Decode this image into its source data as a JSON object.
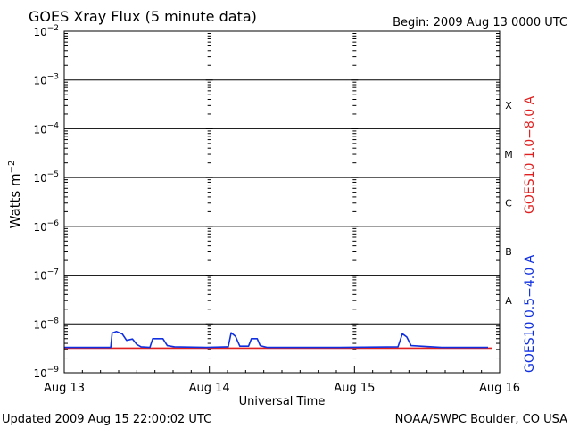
{
  "chart_data": {
    "type": "line",
    "title": "GOES Xray Flux (5 minute data)",
    "begin_label": "Begin:  2009 Aug 13 0000 UTC",
    "xlabel": "Universal Time",
    "ylabel_base": "Watts m",
    "ylabel_exp": "−2",
    "y_scale": "log",
    "ylim": [
      1e-09,
      0.01
    ],
    "y_ticks": [
      {
        "base": "10",
        "exp": "−2",
        "value": 0.01
      },
      {
        "base": "10",
        "exp": "−3",
        "value": 0.001
      },
      {
        "base": "10",
        "exp": "−4",
        "value": 0.0001
      },
      {
        "base": "10",
        "exp": "−5",
        "value": 1e-05
      },
      {
        "base": "10",
        "exp": "−6",
        "value": 1e-06
      },
      {
        "base": "10",
        "exp": "−7",
        "value": 1e-07
      },
      {
        "base": "10",
        "exp": "−8",
        "value": 1e-08
      },
      {
        "base": "10",
        "exp": "−9",
        "value": 1e-09
      }
    ],
    "x_ticks": [
      "Aug 13",
      "Aug 14",
      "Aug 15",
      "Aug 16"
    ],
    "x_range_days": [
      0,
      3
    ],
    "flare_classes": [
      {
        "label": "X",
        "min": 0.0001,
        "max": 0.001
      },
      {
        "label": "M",
        "min": 1e-05,
        "max": 0.0001
      },
      {
        "label": "C",
        "min": 1e-06,
        "max": 1e-05
      },
      {
        "label": "B",
        "min": 1e-07,
        "max": 1e-06
      },
      {
        "label": "A",
        "min": 1e-08,
        "max": 1e-07
      }
    ],
    "grid": true,
    "series": [
      {
        "name": "GOES10 1.0−8.0 A",
        "color": "#e02020",
        "points": [
          [
            0.0,
            3.2e-09
          ],
          [
            1.0,
            3.2e-09
          ],
          [
            2.0,
            3.2e-09
          ],
          [
            2.95,
            3.2e-09
          ]
        ]
      },
      {
        "name": "GOES10 0.5−4.0 A",
        "color": "#1030e0",
        "points": [
          [
            0.0,
            3.3e-09
          ],
          [
            0.32,
            3.3e-09
          ],
          [
            0.33,
            6.5e-09
          ],
          [
            0.36,
            7e-09
          ],
          [
            0.4,
            6.2e-09
          ],
          [
            0.43,
            4.6e-09
          ],
          [
            0.47,
            4.9e-09
          ],
          [
            0.5,
            3.8e-09
          ],
          [
            0.53,
            3.4e-09
          ],
          [
            0.59,
            3.3e-09
          ],
          [
            0.61,
            5e-09
          ],
          [
            0.68,
            5e-09
          ],
          [
            0.71,
            3.6e-09
          ],
          [
            0.76,
            3.4e-09
          ],
          [
            0.98,
            3.3e-09
          ],
          [
            1.13,
            3.4e-09
          ],
          [
            1.15,
            6.6e-09
          ],
          [
            1.18,
            5.6e-09
          ],
          [
            1.21,
            3.5e-09
          ],
          [
            1.27,
            3.5e-09
          ],
          [
            1.29,
            5e-09
          ],
          [
            1.33,
            5e-09
          ],
          [
            1.35,
            3.6e-09
          ],
          [
            1.4,
            3.3e-09
          ],
          [
            1.6,
            3.3e-09
          ],
          [
            1.85,
            3.3e-09
          ],
          [
            2.3,
            3.4e-09
          ],
          [
            2.33,
            6.3e-09
          ],
          [
            2.36,
            5.4e-09
          ],
          [
            2.39,
            3.6e-09
          ],
          [
            2.6,
            3.3e-09
          ],
          [
            2.92,
            3.3e-09
          ]
        ]
      }
    ]
  },
  "footer": {
    "updated": "Updated 2009 Aug 15 22:00:02 UTC",
    "credit": "NOAA/SWPC Boulder, CO USA"
  }
}
